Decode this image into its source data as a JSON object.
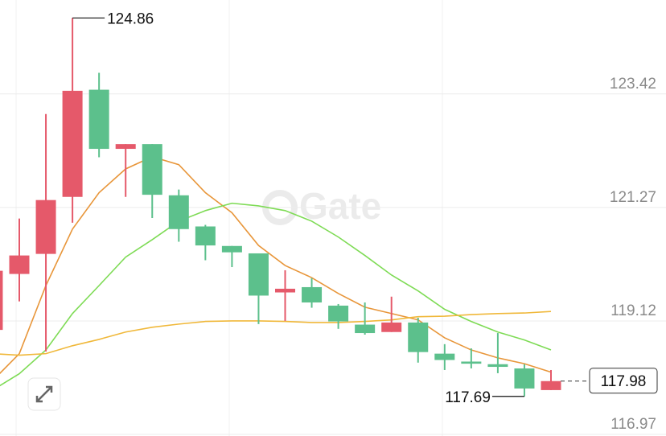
{
  "chart_data": {
    "type": "candlestick",
    "watermark": "Gate",
    "up_color": "#e5596a",
    "down_color": "#5cc08c",
    "open": [
      118.95,
      120.01,
      120.39,
      121.47,
      123.5,
      122.38,
      122.47,
      121.5,
      120.91,
      120.54,
      120.4,
      119.66,
      119.76,
      119.41,
      119.05,
      118.91,
      119.09,
      118.5,
      118.35,
      118.3,
      118.22,
      117.81
    ],
    "high": [
      120.07,
      121.06,
      123.04,
      124.86,
      123.82,
      122.47,
      122.47,
      121.61,
      120.94,
      120.54,
      120.4,
      120.08,
      119.93,
      119.44,
      119.47,
      119.58,
      119.18,
      118.68,
      118.6,
      118.89,
      118.3,
      118.19
    ],
    "low": [
      118.95,
      119.49,
      118.54,
      120.98,
      122.22,
      121.47,
      121.07,
      120.62,
      120.27,
      120.14,
      119.06,
      119.12,
      119.37,
      118.97,
      118.86,
      118.91,
      118.33,
      118.19,
      118.22,
      118.13,
      117.69,
      117.81
    ],
    "close": [
      120.07,
      120.36,
      121.41,
      123.48,
      122.38,
      122.47,
      121.51,
      120.86,
      120.55,
      120.42,
      119.6,
      119.73,
      119.47,
      119.11,
      118.89,
      119.09,
      118.53,
      118.38,
      118.31,
      118.25,
      117.84,
      117.98
    ],
    "series": [
      {
        "color": "#e8963a",
        "values": [
          117.99,
          118.5,
          119.79,
          120.86,
          121.55,
          122.0,
          122.23,
          122.08,
          121.55,
          121.17,
          120.55,
          120.17,
          119.94,
          119.64,
          119.38,
          119.26,
          119.14,
          118.8,
          118.57,
          118.42,
          118.31,
          118.15
        ]
      },
      {
        "color": "#7edb55",
        "values": [
          117.81,
          118.12,
          118.57,
          119.26,
          119.79,
          120.33,
          120.66,
          121.01,
          121.21,
          121.35,
          121.3,
          121.21,
          121.01,
          120.71,
          120.36,
          119.99,
          119.69,
          119.34,
          119.11,
          118.91,
          118.76,
          118.57
        ]
      },
      {
        "color": "#f0b83a",
        "values": [
          118.5,
          118.47,
          118.5,
          118.65,
          118.77,
          118.91,
          119.0,
          119.06,
          119.11,
          119.12,
          119.12,
          119.11,
          119.09,
          119.09,
          119.11,
          119.14,
          119.2,
          119.21,
          119.24,
          119.26,
          119.27,
          119.3
        ]
      }
    ],
    "ylim": [
      116.94,
      125.2
    ],
    "yticks": [
      123.42,
      121.27,
      119.12,
      116.97
    ],
    "grid": true
  }
}
